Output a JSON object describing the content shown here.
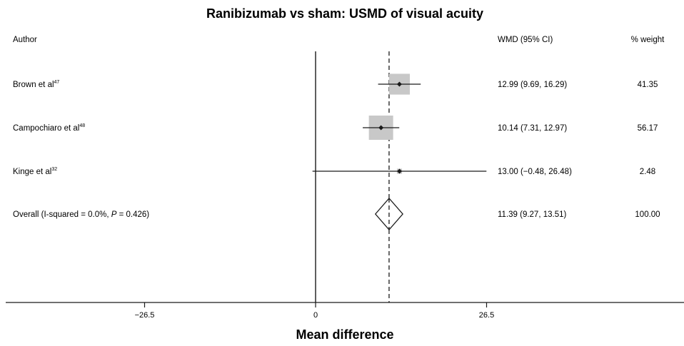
{
  "chart_data": {
    "type": "forest",
    "title": "Ranibizumab vs sham: USMD of visual acuity",
    "xlabel": "Mean difference",
    "headers": {
      "author": "Author",
      "effect": "WMD (95% CI)",
      "weight": "% weight"
    },
    "x_ticks": [
      {
        "value": -26.5,
        "label": "−26.5"
      },
      {
        "value": 0,
        "label": "0"
      },
      {
        "value": 26.5,
        "label": "26.5"
      }
    ],
    "xlim": [
      -48,
      57
    ],
    "reference_line": 0,
    "pooled_line": 11.39,
    "studies": [
      {
        "author": "Brown et al",
        "ref": "47",
        "estimate": 12.99,
        "ci_low": 9.69,
        "ci_high": 16.29,
        "effect_text": "12.99 (9.69, 16.29)",
        "weight": 41.35,
        "weight_text": "41.35"
      },
      {
        "author": "Campochiaro et al",
        "ref": "48",
        "estimate": 10.14,
        "ci_low": 7.31,
        "ci_high": 12.97,
        "effect_text": "10.14 (7.31, 12.97)",
        "weight": 56.17,
        "weight_text": "56.17"
      },
      {
        "author": "Kinge et al",
        "ref": "32",
        "estimate": 13.0,
        "ci_low": -0.48,
        "ci_high": 26.48,
        "effect_text": "13.00 (−0.48, 26.48)",
        "weight": 2.48,
        "weight_text": "2.48"
      }
    ],
    "overall": {
      "label_prefix": "Overall  (I-squared = 0.0%, ",
      "label_p": "P",
      "label_suffix": " = 0.426)",
      "estimate": 11.39,
      "ci_low": 9.27,
      "ci_high": 13.51,
      "effect_text": "11.39 (9.27, 13.51)",
      "weight_text": "100.00"
    },
    "colors": {
      "box": "#c8c8c8",
      "line": "#1a1a1a",
      "marker": "#1a1a1a"
    }
  }
}
